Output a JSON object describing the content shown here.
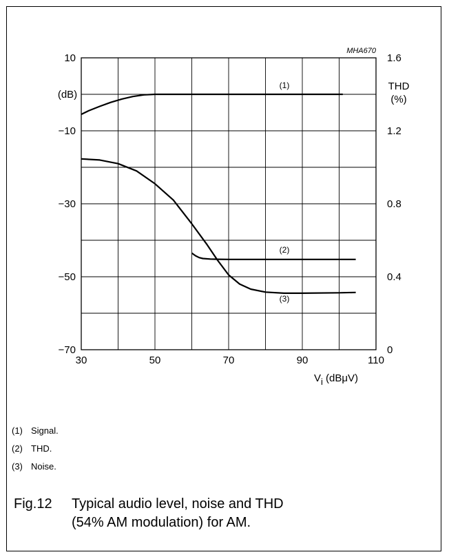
{
  "chart_data": {
    "type": "line",
    "code": "MHA670",
    "xlabel": "V_i (dBμV)",
    "xlim": [
      30,
      110
    ],
    "x_ticks": [
      30,
      50,
      70,
      90,
      110
    ],
    "ylabel_left": "(dB)",
    "ylim_left": [
      -70,
      10
    ],
    "y_ticks_left": [
      10,
      -10,
      -30,
      -50,
      -70
    ],
    "ylabel_right": "THD (%)",
    "ylim_right": [
      0,
      1.6
    ],
    "y_ticks_right": [
      "1.6",
      "1.2",
      "0.8",
      "0.4",
      "0"
    ],
    "grid": true,
    "series": [
      {
        "name": "(1)",
        "axis": "left",
        "x": [
          30,
          32,
          35,
          38,
          41,
          44,
          47,
          50,
          55,
          60,
          70,
          80,
          90,
          101
        ],
        "y": [
          -5.5,
          -4.5,
          -3.3,
          -2.2,
          -1.3,
          -0.6,
          -0.15,
          0,
          0,
          0,
          0,
          0,
          0,
          0
        ]
      },
      {
        "name": "(2)",
        "axis": "right",
        "x": [
          60,
          61,
          62,
          63,
          65,
          67,
          70,
          80,
          90,
          104.5
        ],
        "y": [
          0.53,
          0.515,
          0.505,
          0.5,
          0.497,
          0.496,
          0.495,
          0.495,
          0.495,
          0.495
        ]
      },
      {
        "name": "(3)",
        "axis": "left",
        "x": [
          30,
          35,
          40,
          45,
          50,
          55,
          60,
          64,
          67,
          70,
          73,
          76,
          80,
          85,
          90,
          100,
          104.5
        ],
        "y": [
          -17.7,
          -18.0,
          -19.0,
          -21.0,
          -24.5,
          -29.0,
          -35.5,
          -41.0,
          -45.5,
          -49.5,
          -52.0,
          -53.4,
          -54.2,
          -54.5,
          -54.5,
          -54.4,
          -54.3
        ]
      }
    ]
  },
  "notes": [
    {
      "num": "(1)",
      "text": "Signal."
    },
    {
      "num": "(2)",
      "text": "THD."
    },
    {
      "num": "(3)",
      "text": "Noise."
    }
  ],
  "caption": {
    "num": "Fig.12",
    "line1": "Typical audio level, noise and THD",
    "line2": "(54% AM modulation) for AM."
  }
}
